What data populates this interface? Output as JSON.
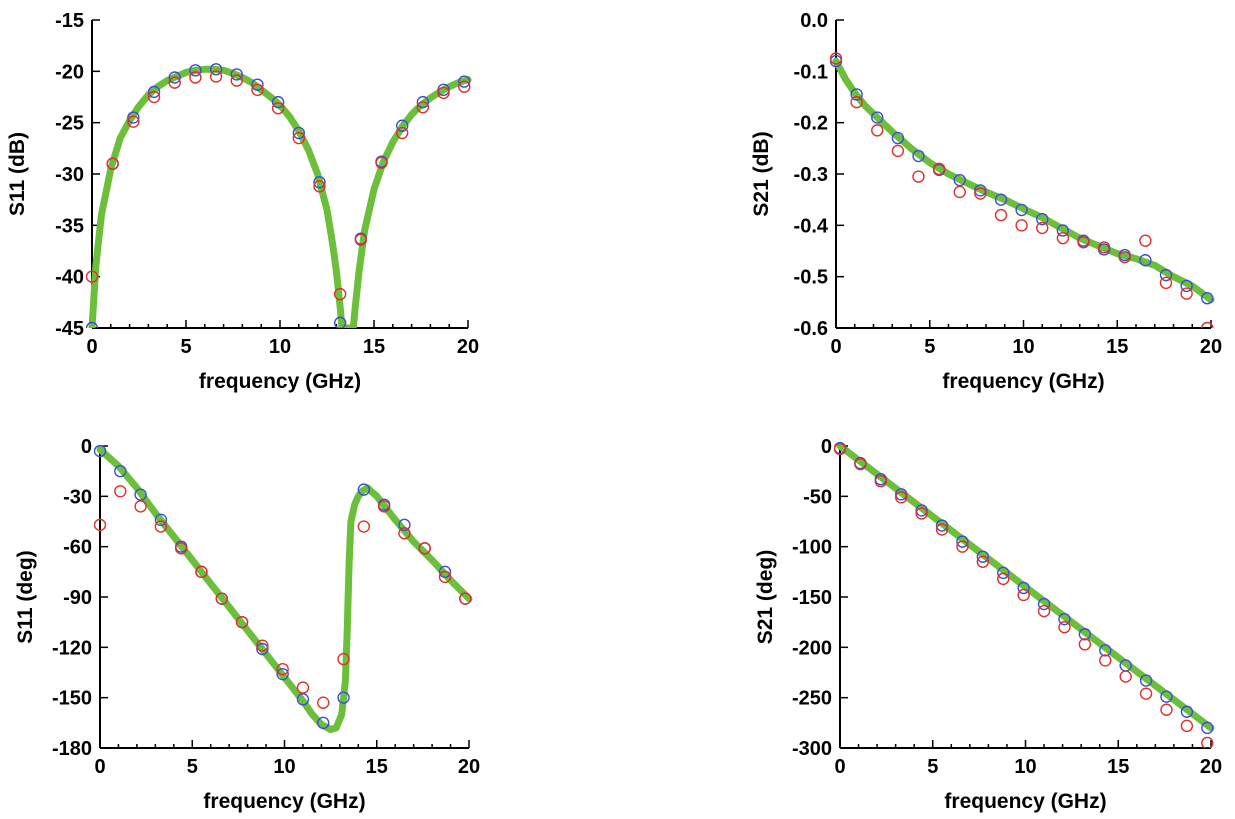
{
  "chart_data": [
    {
      "id": "s11-db",
      "type": "line",
      "xlabel": "frequency (GHz)",
      "ylabel": "S11 (dB)",
      "xlim": [
        0,
        20
      ],
      "ylim": [
        -45,
        -15
      ],
      "xticks": [
        0,
        5,
        10,
        15,
        20
      ],
      "yticks": [
        -45,
        -40,
        -35,
        -30,
        -25,
        -20,
        -15
      ],
      "grid": false,
      "colors": {
        "line": "#6cbf3b",
        "blue": "#3b4fd8",
        "red": "#e0302a"
      },
      "series": [
        {
          "style": "line",
          "x": [
            0.0,
            0.2,
            0.5,
            1.0,
            1.5,
            2.0,
            2.5,
            3.0,
            3.5,
            4.0,
            4.5,
            5.0,
            5.5,
            6.0,
            6.5,
            7.0,
            7.5,
            8.0,
            8.5,
            9.0,
            9.5,
            10.0,
            10.5,
            11.0,
            11.5,
            12.0,
            12.5,
            12.8,
            13.0,
            13.2,
            13.3,
            13.9,
            14.0,
            14.2,
            14.5,
            15.0,
            15.5,
            16.0,
            16.5,
            17.0,
            17.5,
            18.0,
            18.5,
            19.0,
            19.5,
            20.0
          ],
          "y": [
            -45,
            -39,
            -34,
            -29.5,
            -26.5,
            -24.8,
            -23.4,
            -22.3,
            -21.5,
            -20.9,
            -20.5,
            -20.1,
            -19.9,
            -19.8,
            -19.8,
            -19.9,
            -20.2,
            -20.6,
            -21.1,
            -21.8,
            -22.5,
            -23.3,
            -24.4,
            -25.8,
            -27.6,
            -30,
            -33.5,
            -36.8,
            -39.5,
            -43,
            -45,
            -45,
            -43,
            -39.5,
            -35.5,
            -31.5,
            -28.8,
            -26.9,
            -25.4,
            -24.2,
            -23.3,
            -22.6,
            -22.0,
            -21.5,
            -21.1,
            -20.8
          ]
        },
        {
          "style": "markers",
          "color": "blue",
          "x": [
            0,
            1.1,
            2.2,
            3.3,
            4.4,
            5.5,
            6.6,
            7.7,
            8.8,
            9.9,
            11.0,
            12.1,
            13.2,
            14.3,
            15.4,
            16.5,
            17.6,
            18.7,
            19.8
          ],
          "y": [
            -45,
            -29,
            -24.5,
            -22,
            -20.6,
            -19.9,
            -19.8,
            -20.3,
            -21.3,
            -23,
            -26,
            -30.8,
            -44.5,
            -36.3,
            -28.8,
            -25.3,
            -23,
            -21.8,
            -21
          ]
        },
        {
          "style": "markers",
          "color": "red",
          "x": [
            0,
            1.1,
            2.2,
            3.3,
            4.4,
            5.5,
            6.6,
            7.7,
            8.8,
            9.9,
            11.0,
            12.1,
            13.2,
            14.3,
            15.4,
            16.5,
            17.6,
            18.7,
            19.8
          ],
          "y": [
            -40,
            -29,
            -24.9,
            -22.5,
            -21.1,
            -20.6,
            -20.5,
            -20.9,
            -21.8,
            -23.6,
            -26.5,
            -31.2,
            -41.7,
            -36.4,
            -28.9,
            -26,
            -23.5,
            -22.1,
            -21.5
          ]
        }
      ]
    },
    {
      "id": "s21-db",
      "type": "line",
      "xlabel": "frequency (GHz)",
      "ylabel": "S21 (dB)",
      "xlim": [
        0,
        20
      ],
      "ylim": [
        -0.6,
        0.0
      ],
      "xticks": [
        0,
        5,
        10,
        15,
        20
      ],
      "yticks": [
        -0.6,
        -0.5,
        -0.4,
        -0.3,
        -0.2,
        -0.1,
        0.0
      ],
      "ytick_labels": [
        "-0.6",
        "-0.5",
        "-0.4",
        "-0.3",
        "-0.2",
        "-0.1",
        "0.0"
      ],
      "grid": false,
      "series": [
        {
          "style": "line",
          "x": [
            0,
            0.5,
            1,
            1.5,
            2,
            3,
            4,
            5,
            6,
            7,
            8,
            9,
            10,
            11,
            12,
            13,
            14,
            15,
            16,
            17,
            18,
            19,
            20
          ],
          "y": [
            -0.08,
            -0.115,
            -0.142,
            -0.165,
            -0.183,
            -0.218,
            -0.25,
            -0.278,
            -0.3,
            -0.318,
            -0.335,
            -0.35,
            -0.368,
            -0.385,
            -0.405,
            -0.425,
            -0.44,
            -0.455,
            -0.465,
            -0.478,
            -0.5,
            -0.518,
            -0.545
          ]
        },
        {
          "style": "markers",
          "color": "blue",
          "x": [
            0,
            1.1,
            2.2,
            3.3,
            4.4,
            5.5,
            6.6,
            7.7,
            8.8,
            9.9,
            11.0,
            12.1,
            13.2,
            14.3,
            15.4,
            16.5,
            17.6,
            18.7,
            19.8
          ],
          "y": [
            -0.08,
            -0.145,
            -0.19,
            -0.23,
            -0.265,
            -0.292,
            -0.312,
            -0.332,
            -0.35,
            -0.37,
            -0.388,
            -0.41,
            -0.43,
            -0.447,
            -0.458,
            -0.468,
            -0.497,
            -0.518,
            -0.542
          ]
        },
        {
          "style": "markers",
          "color": "red",
          "x": [
            0,
            1.1,
            2.2,
            3.3,
            4.4,
            5.5,
            6.6,
            7.7,
            8.8,
            9.9,
            11.0,
            12.1,
            13.2,
            14.3,
            15.4,
            16.5,
            17.6,
            18.7,
            19.8
          ],
          "y": [
            -0.075,
            -0.16,
            -0.215,
            -0.255,
            -0.305,
            -0.29,
            -0.335,
            -0.338,
            -0.38,
            -0.4,
            -0.405,
            -0.425,
            -0.433,
            -0.443,
            -0.462,
            -0.43,
            -0.512,
            -0.533,
            -0.6
          ]
        }
      ]
    },
    {
      "id": "s11-deg",
      "type": "line",
      "xlabel": "frequency (GHz)",
      "ylabel": "S11 (deg)",
      "xlim": [
        0,
        20
      ],
      "ylim": [
        -180,
        0
      ],
      "xticks": [
        0,
        5,
        10,
        15,
        20
      ],
      "yticks": [
        -180,
        -150,
        -120,
        -90,
        -60,
        -30,
        0
      ],
      "grid": false,
      "series": [
        {
          "style": "line",
          "x": [
            0,
            1,
            2,
            3,
            4,
            5,
            6,
            7,
            8,
            9,
            10,
            11,
            11.5,
            12,
            12.5,
            12.8,
            13.1,
            13.3,
            13.4,
            13.5,
            13.6,
            13.8,
            14.0,
            14.2,
            14.5,
            15,
            16,
            17,
            18,
            19,
            20
          ],
          "y": [
            -2,
            -12,
            -25,
            -40,
            -54,
            -68,
            -82,
            -96,
            -110,
            -124,
            -138,
            -152,
            -160,
            -166,
            -169,
            -168,
            -160,
            -140,
            -110,
            -70,
            -45,
            -35,
            -30,
            -27,
            -25,
            -30,
            -44,
            -57,
            -68,
            -80,
            -91
          ]
        },
        {
          "style": "markers",
          "color": "blue",
          "x": [
            0,
            1.1,
            2.2,
            3.3,
            4.4,
            5.5,
            6.6,
            7.7,
            8.8,
            9.9,
            11.0,
            12.1,
            13.2,
            14.3,
            15.4,
            16.5,
            17.6,
            18.7,
            19.8
          ],
          "y": [
            -3,
            -15,
            -29,
            -44,
            -60,
            -75,
            -91,
            -105,
            -121,
            -136,
            -151,
            -165,
            -150,
            -26,
            -35,
            -47,
            -61,
            -75,
            -91
          ]
        },
        {
          "style": "markers",
          "color": "red",
          "x": [
            0,
            1.1,
            2.2,
            3.3,
            4.4,
            5.5,
            6.6,
            7.7,
            8.8,
            9.9,
            11.0,
            12.1,
            13.2,
            14.3,
            15.4,
            16.5,
            17.6,
            18.7,
            19.8
          ],
          "y": [
            -47,
            -27,
            -36,
            -48,
            -61,
            -75,
            -91,
            -105,
            -119,
            -133,
            -144,
            -153,
            -127,
            -48,
            -36,
            -52,
            -61,
            -78,
            -91
          ]
        }
      ]
    },
    {
      "id": "s21-deg",
      "type": "line",
      "xlabel": "frequency (GHz)",
      "ylabel": "S21 (deg)",
      "xlim": [
        0,
        20
      ],
      "ylim": [
        -300,
        0
      ],
      "xticks": [
        0,
        5,
        10,
        15,
        20
      ],
      "yticks": [
        -300,
        -250,
        -200,
        -150,
        -100,
        -50,
        0
      ],
      "grid": false,
      "series": [
        {
          "style": "line",
          "x": [
            0,
            20
          ],
          "y": [
            0,
            -280
          ]
        },
        {
          "style": "markers",
          "color": "blue",
          "x": [
            0,
            1.1,
            2.2,
            3.3,
            4.4,
            5.5,
            6.6,
            7.7,
            8.8,
            9.9,
            11.0,
            12.1,
            13.2,
            14.3,
            15.4,
            16.5,
            17.6,
            18.7,
            19.8
          ],
          "y": [
            -2,
            -17,
            -33,
            -48,
            -64,
            -79,
            -95,
            -110,
            -126,
            -141,
            -157,
            -172,
            -187,
            -203,
            -218,
            -233,
            -249,
            -264,
            -280
          ]
        },
        {
          "style": "markers",
          "color": "red",
          "x": [
            0,
            1.1,
            2.2,
            3.3,
            4.4,
            5.5,
            6.6,
            7.7,
            8.8,
            9.9,
            11.0,
            12.1,
            13.2,
            14.3,
            15.4,
            16.5,
            17.6,
            18.7,
            19.8
          ],
          "y": [
            -3,
            -18,
            -35,
            -51,
            -67,
            -83,
            -100,
            -115,
            -132,
            -148,
            -164,
            -180,
            -197,
            -213,
            -229,
            -246,
            -262,
            -278,
            -295
          ]
        }
      ]
    }
  ]
}
